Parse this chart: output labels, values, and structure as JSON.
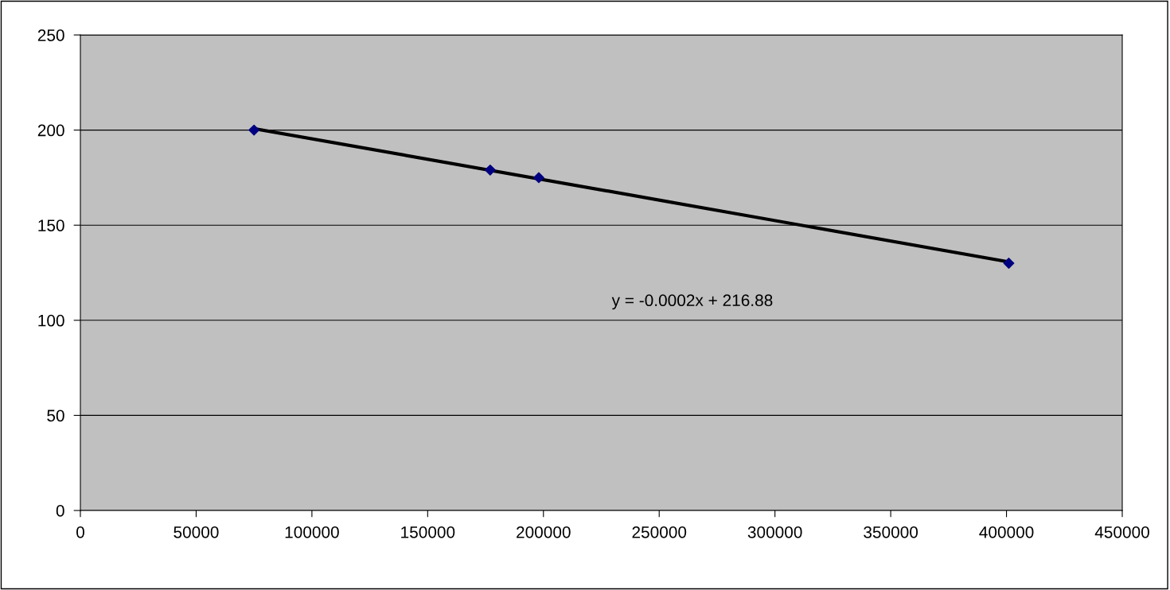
{
  "chart_data": {
    "type": "scatter",
    "x": [
      75000,
      177000,
      198000,
      401000
    ],
    "series": [
      {
        "color": "#000080",
        "marker": "diamond",
        "values": [
          200,
          179,
          175,
          130
        ]
      },
      {
        "type": "line",
        "color": "#000000",
        "marker": "none",
        "x": [
          75000,
          401000
        ],
        "values": [
          200.8,
          130.7
        ]
      }
    ],
    "xlim": [
      0,
      450000
    ],
    "xticks": [
      0,
      50000,
      100000,
      150000,
      200000,
      250000,
      300000,
      350000,
      400000,
      450000
    ],
    "ylim": [
      0,
      250
    ],
    "yticks": [
      0,
      50,
      100,
      150,
      200,
      250
    ],
    "grid": "y",
    "annotations": [
      "y = -0.0002x + 216.88"
    ]
  }
}
